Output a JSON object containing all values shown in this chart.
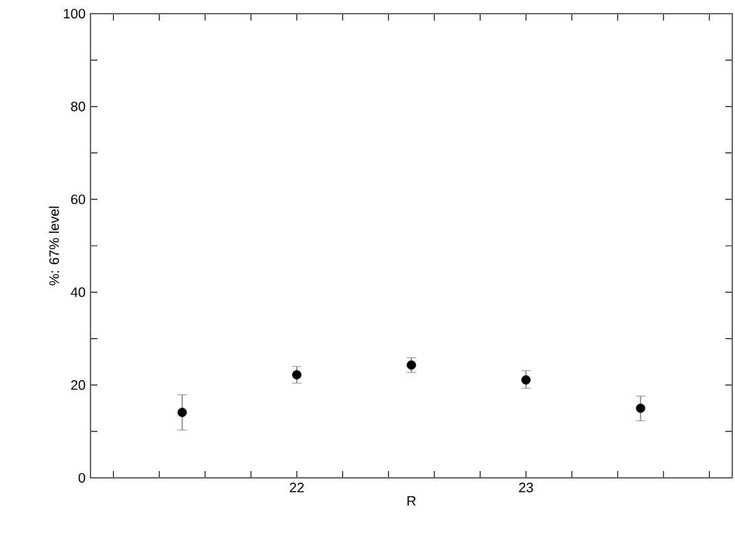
{
  "chart_data": {
    "type": "scatter",
    "xlabel": "R",
    "ylabel": "%: 67% level",
    "x": [
      21.5,
      22,
      22.5,
      23,
      23.5
    ],
    "values": [
      14.1,
      22.2,
      24.3,
      21.1,
      15.0
    ],
    "errors": [
      [
        10.3,
        17.9
      ],
      [
        20.4,
        24.0
      ],
      [
        22.7,
        25.9
      ],
      [
        19.3,
        23.1
      ],
      [
        12.3,
        17.6
      ]
    ],
    "color": "#000000",
    "marker": "circle",
    "xlim": [
      21.1,
      23.9
    ],
    "xticks": [
      {
        "value": 21.2,
        "label": null
      },
      {
        "value": 21.4,
        "label": null
      },
      {
        "value": 21.6,
        "label": null
      },
      {
        "value": 21.8,
        "label": null
      },
      22,
      {
        "value": 22.2,
        "label": null
      },
      {
        "value": 22.4,
        "label": null
      },
      {
        "value": 22.6,
        "label": null
      },
      {
        "value": 22.8,
        "label": null
      },
      23,
      {
        "value": 23.2,
        "label": null
      },
      {
        "value": 23.4,
        "label": null
      },
      {
        "value": 23.6,
        "label": null
      },
      {
        "value": 23.8,
        "label": null
      }
    ],
    "ylim": [
      0,
      100
    ],
    "yticks": [
      0,
      {
        "value": 10,
        "label": null
      },
      20,
      {
        "value": 30,
        "label": null
      },
      40,
      {
        "value": 50,
        "label": null
      },
      60,
      {
        "value": 70,
        "label": null
      },
      80,
      {
        "value": 90,
        "label": null
      },
      100
    ],
    "grid": false
  }
}
